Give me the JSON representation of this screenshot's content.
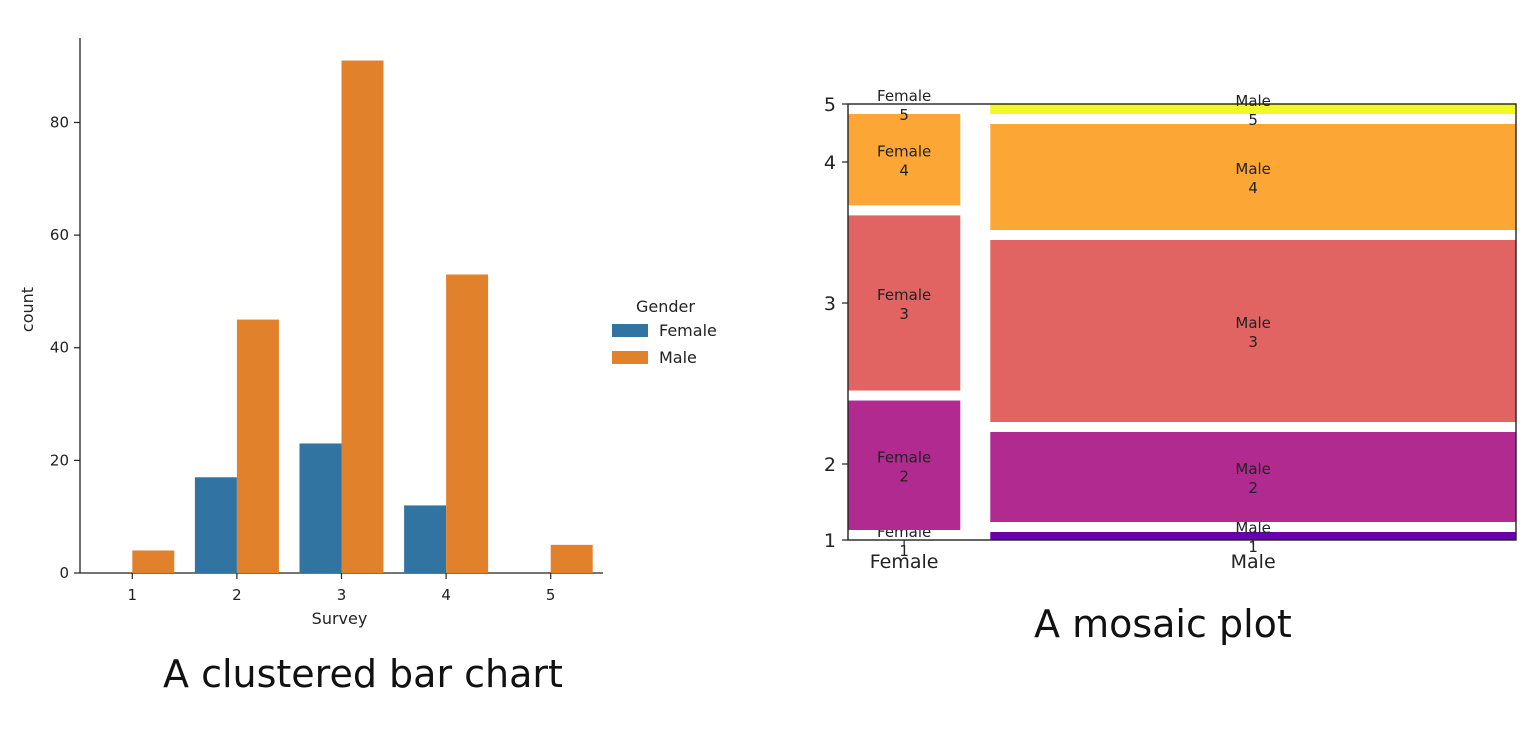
{
  "chart_data": [
    {
      "type": "bar",
      "caption": "A clustered bar chart",
      "xlabel": "Survey",
      "ylabel": "count",
      "categories": [
        "1",
        "2",
        "3",
        "4",
        "5"
      ],
      "series": [
        {
          "name": "Female",
          "values": [
            0,
            17,
            23,
            12,
            0
          ]
        },
        {
          "name": "Male",
          "values": [
            4,
            45,
            91,
            53,
            5
          ]
        }
      ],
      "ylim": [
        0,
        95
      ],
      "yticks": [
        "0",
        "20",
        "40",
        "60",
        "80"
      ],
      "legend": {
        "title": "Gender",
        "placement": "right",
        "entries": [
          "Female",
          "Male"
        ]
      },
      "grid": false,
      "colors": {
        "Female": "#3274a1",
        "Male": "#e1812c"
      }
    },
    {
      "type": "mosaic",
      "caption": "A mosaic plot",
      "x_categories": [
        "Female",
        "Male"
      ],
      "x_proportions": [
        0.176,
        0.824
      ],
      "yticks": [
        "1",
        "2",
        "3",
        "4",
        "5"
      ],
      "cells": {
        "Female": [
          {
            "label": "Female\n1",
            "value": 0
          },
          {
            "label": "Female\n2",
            "value": 17
          },
          {
            "label": "Female\n3",
            "value": 23
          },
          {
            "label": "Female\n4",
            "value": 12
          },
          {
            "label": "Female\n5",
            "value": 0
          }
        ],
        "Male": [
          {
            "label": "Male\n1",
            "value": 4
          },
          {
            "label": "Male\n2",
            "value": 45
          },
          {
            "label": "Male\n3",
            "value": 91
          },
          {
            "label": "Male\n4",
            "value": 53
          },
          {
            "label": "Male\n5",
            "value": 5
          }
        ]
      },
      "colors": [
        "#6a00a8",
        "#b12a90",
        "#e16462",
        "#fca636",
        "#f0f921"
      ]
    }
  ]
}
